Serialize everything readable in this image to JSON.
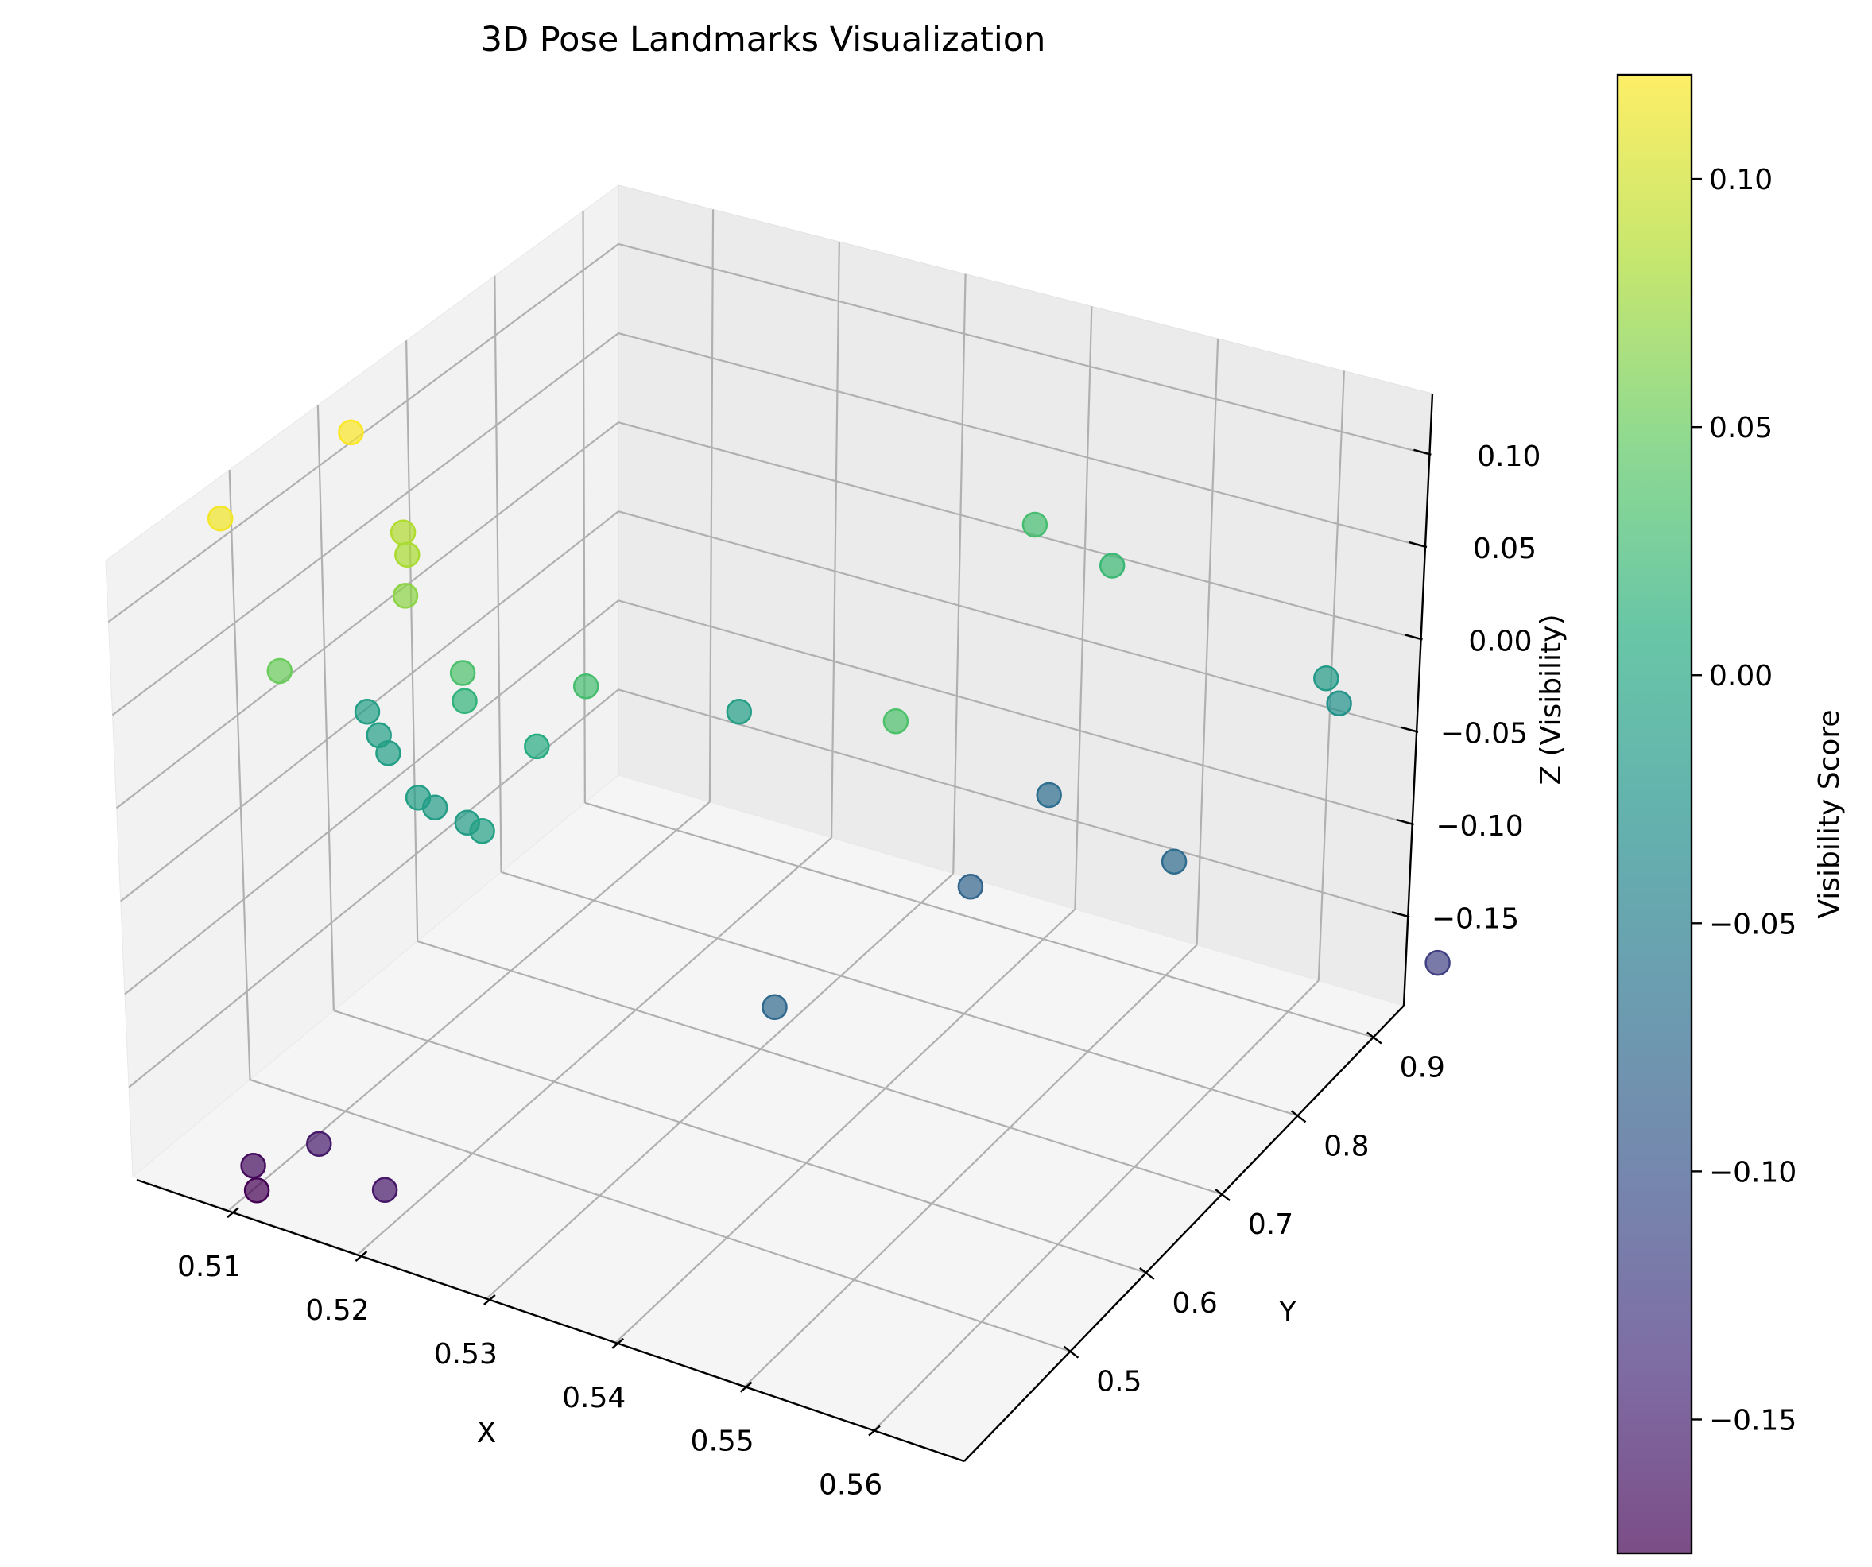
{
  "chart_data": {
    "type": "scatter",
    "title": "3D Pose Landmarks Visualization",
    "xlabel": "X",
    "ylabel": "Y",
    "zlabel": "Z (Visibility)",
    "colorbar_label": "Visibility Score",
    "colormap": "viridis",
    "alpha": 0.7,
    "x_ticks": [
      "0.51",
      "0.52",
      "0.53",
      "0.54",
      "0.55",
      "0.56"
    ],
    "y_ticks": [
      "0.5",
      "0.6",
      "0.7",
      "0.8",
      "0.9"
    ],
    "z_ticks": [
      "0.10",
      "0.05",
      "0.00",
      "−0.05",
      "−0.10",
      "−0.15"
    ],
    "colorbar_ticks": [
      "0.10",
      "0.05",
      "0.00",
      "−0.05",
      "−0.10",
      "−0.15"
    ],
    "color_range": [
      -0.177,
      0.121
    ],
    "grid": true,
    "points": [
      {
        "x": 0.5067,
        "y": 0.4,
        "z": 0.116
      },
      {
        "x": 0.5087,
        "y": 0.525,
        "z": 0.12
      },
      {
        "x": 0.5134,
        "y": 0.515,
        "z": 0.085
      },
      {
        "x": 0.5147,
        "y": 0.5,
        "z": 0.082
      },
      {
        "x": 0.5154,
        "y": 0.487,
        "z": 0.068
      },
      {
        "x": 0.5113,
        "y": 0.4,
        "z": 0.052
      },
      {
        "x": 0.519,
        "y": 0.5,
        "z": 0.034
      },
      {
        "x": 0.5307,
        "y": 0.65,
        "z": -0.01
      },
      {
        "x": 0.5103,
        "y": 0.52,
        "z": -0.01
      },
      {
        "x": 0.5125,
        "y": 0.5,
        "z": -0.01
      },
      {
        "x": 0.5142,
        "y": 0.485,
        "z": -0.01
      },
      {
        "x": 0.5185,
        "y": 0.51,
        "z": 0.016
      },
      {
        "x": 0.5188,
        "y": 0.45,
        "z": -0.01
      },
      {
        "x": 0.5201,
        "y": 0.45,
        "z": -0.012
      },
      {
        "x": 0.5226,
        "y": 0.45,
        "z": -0.014
      },
      {
        "x": 0.5248,
        "y": 0.434,
        "z": -0.008
      },
      {
        "x": 0.5241,
        "y": 0.51,
        "z": 0.006
      },
      {
        "x": 0.5261,
        "y": 0.538,
        "z": 0.03
      },
      {
        "x": 0.5125,
        "y": 0.35,
        "z": -0.168
      },
      {
        "x": 0.5131,
        "y": 0.345,
        "z": -0.177
      },
      {
        "x": 0.5163,
        "y": 0.37,
        "z": -0.156
      },
      {
        "x": 0.5227,
        "y": 0.35,
        "z": -0.158
      },
      {
        "x": 0.54,
        "y": 0.86,
        "z": 0.03
      },
      {
        "x": 0.546,
        "y": 0.86,
        "z": 0.023
      },
      {
        "x": 0.545,
        "y": 0.8,
        "z": -0.07
      },
      {
        "x": 0.56,
        "y": 0.9,
        "z": -0.015
      },
      {
        "x": 0.561,
        "y": 0.9,
        "z": -0.025
      },
      {
        "x": 0.5454,
        "y": 0.7,
        "z": -0.08
      },
      {
        "x": 0.556,
        "y": 0.78,
        "z": -0.072
      },
      {
        "x": 0.5706,
        "y": 0.87,
        "z": -0.12
      },
      {
        "x": 0.5461,
        "y": 0.6,
        "z": 0.035
      },
      {
        "x": 0.5432,
        "y": 0.5,
        "z": -0.076
      }
    ]
  }
}
